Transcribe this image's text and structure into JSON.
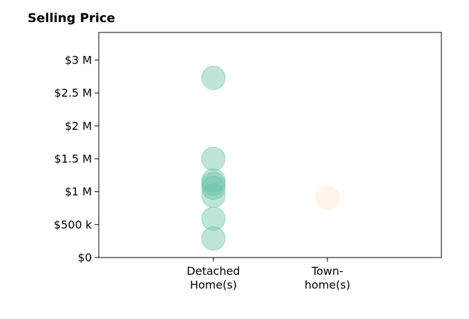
{
  "chart_data": {
    "type": "scatter",
    "title": "Selling Price",
    "xlabel": "",
    "ylabel": "",
    "categories": [
      [
        "Detached",
        "Home(s)"
      ],
      [
        "Town-",
        "home(s)"
      ]
    ],
    "ylim": [
      0,
      3420000
    ],
    "yticks": [
      0,
      500000,
      1000000,
      1500000,
      2000000,
      2500000,
      3000000
    ],
    "ytick_labels": [
      "$0",
      "$500 k",
      "$1 M",
      "$1.5 M",
      "$2 M",
      "$2.5 M",
      "$3 M"
    ],
    "grid": false,
    "series": [
      {
        "category_index": 0,
        "color": "#66c2a5",
        "values": [
          2730000,
          1500000,
          1170000,
          1120000,
          1060000,
          940000,
          590000,
          290000
        ]
      },
      {
        "category_index": 1,
        "color": "#fee8c8",
        "values": [
          910000
        ]
      }
    ]
  }
}
